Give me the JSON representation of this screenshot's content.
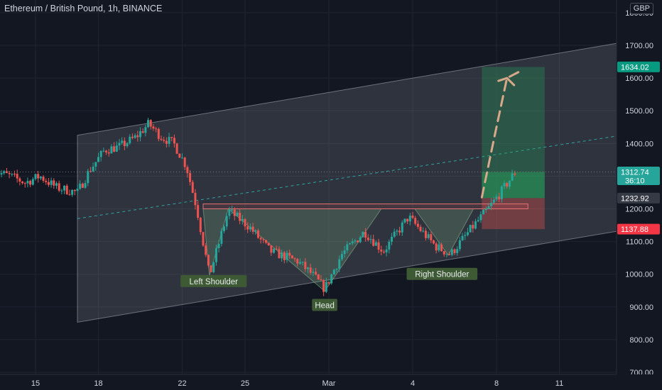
{
  "header": {
    "title": "Ethereum / British Pound, 1h, BINANCE",
    "currency": "GBP"
  },
  "colors": {
    "background": "#131722",
    "up": "#26a69a",
    "down": "#ef5350",
    "target_tag": "#089981",
    "stop_tag": "#f23645",
    "channel": "#aab0b8",
    "label_bg": "#3e5a34"
  },
  "chart_data": {
    "type": "candlestick",
    "symbol": "Ethereum / British Pound",
    "interval": "1h",
    "exchange": "BINANCE",
    "ylim": [
      690,
      1815
    ],
    "y_ticks": [
      {
        "value": 700,
        "label": "700.00"
      },
      {
        "value": 800,
        "label": "800.00"
      },
      {
        "value": 900,
        "label": "900.00"
      },
      {
        "value": 1000,
        "label": "1000.00"
      },
      {
        "value": 1100,
        "label": "1100.00"
      },
      {
        "value": 1200,
        "label": "1200.00"
      },
      {
        "value": 1300,
        "label": "1300.00"
      },
      {
        "value": 1400,
        "label": "1400.00"
      },
      {
        "value": 1500,
        "label": "1500.00"
      },
      {
        "value": 1600,
        "label": "1600.00"
      },
      {
        "value": 1700,
        "label": "1700.00"
      },
      {
        "value": 1800,
        "label": "1800.00"
      }
    ],
    "x_ticks": [
      {
        "day": 15,
        "label": "15"
      },
      {
        "day": 18,
        "label": "18"
      },
      {
        "day": 22,
        "label": "22"
      },
      {
        "day": 25,
        "label": "25"
      },
      {
        "day": 29,
        "label": "Mar"
      },
      {
        "day": 33,
        "label": "4"
      },
      {
        "day": 37,
        "label": "8"
      },
      {
        "day": 40,
        "label": "11"
      }
    ],
    "price_path": [
      {
        "day": 13.0,
        "price": 1315
      },
      {
        "day": 13.8,
        "price": 1300
      },
      {
        "day": 14.5,
        "price": 1280
      },
      {
        "day": 15.2,
        "price": 1300
      },
      {
        "day": 16.0,
        "price": 1265
      },
      {
        "day": 17.0,
        "price": 1250
      },
      {
        "day": 17.6,
        "price": 1320
      },
      {
        "day": 18.3,
        "price": 1380
      },
      {
        "day": 19.0,
        "price": 1390
      },
      {
        "day": 19.8,
        "price": 1420
      },
      {
        "day": 20.4,
        "price": 1460
      },
      {
        "day": 21.0,
        "price": 1420
      },
      {
        "day": 21.6,
        "price": 1400
      },
      {
        "day": 22.2,
        "price": 1330
      },
      {
        "day": 22.7,
        "price": 1200
      },
      {
        "day": 23.3,
        "price": 995
      },
      {
        "day": 24.2,
        "price": 1195
      },
      {
        "day": 25.2,
        "price": 1145
      },
      {
        "day": 26.2,
        "price": 1070
      },
      {
        "day": 27.5,
        "price": 1040
      },
      {
        "day": 28.2,
        "price": 1000
      },
      {
        "day": 28.8,
        "price": 955
      },
      {
        "day": 29.6,
        "price": 1060
      },
      {
        "day": 30.7,
        "price": 1130
      },
      {
        "day": 31.6,
        "price": 1070
      },
      {
        "day": 32.8,
        "price": 1175
      },
      {
        "day": 34.1,
        "price": 1085
      },
      {
        "day": 34.8,
        "price": 1060
      },
      {
        "day": 35.8,
        "price": 1140
      },
      {
        "day": 36.6,
        "price": 1200
      },
      {
        "day": 37.2,
        "price": 1250
      },
      {
        "day": 37.9,
        "price": 1313
      }
    ],
    "channel": {
      "upper": [
        {
          "day": 17.0,
          "price": 1425
        },
        {
          "day": 44.0,
          "price": 1720
        }
      ],
      "lower": [
        {
          "day": 17.0,
          "price": 853
        },
        {
          "day": 44.0,
          "price": 1145
        }
      ],
      "mid": [
        {
          "day": 17.0,
          "price": 1170
        },
        {
          "day": 43.5,
          "price": 1430
        }
      ]
    },
    "neckline": {
      "day_from": 23.0,
      "day_to": 38.5,
      "price_low": 1200,
      "price_high": 1215
    },
    "pattern_labels": [
      {
        "text": "Left Shoulder",
        "day": 23.5,
        "price": 978
      },
      {
        "text": "Head",
        "day": 28.8,
        "price": 905
      },
      {
        "text": "Right Shoulder",
        "day": 34.4,
        "price": 1000
      }
    ],
    "position": {
      "day_from": 36.3,
      "day_to": 39.3,
      "entry": 1232.92,
      "target": 1634.02,
      "stop": 1137.88
    },
    "projection": [
      {
        "day": 36.3,
        "price": 1235
      },
      {
        "day": 36.9,
        "price": 1420
      },
      {
        "day": 37.5,
        "price": 1600
      },
      {
        "day": 38.1,
        "price": 1620
      }
    ],
    "price_tags": [
      {
        "value": 1634.02,
        "label": "1634.02",
        "kind": "target"
      },
      {
        "value": 1312.74,
        "label": "1312.74",
        "sub": "36:10",
        "kind": "last"
      },
      {
        "value": 1232.92,
        "label": "1232.92",
        "kind": "entry"
      },
      {
        "value": 1137.88,
        "label": "1137.88",
        "kind": "stop"
      }
    ],
    "last_price": 1312.74,
    "countdown": "36:10"
  }
}
